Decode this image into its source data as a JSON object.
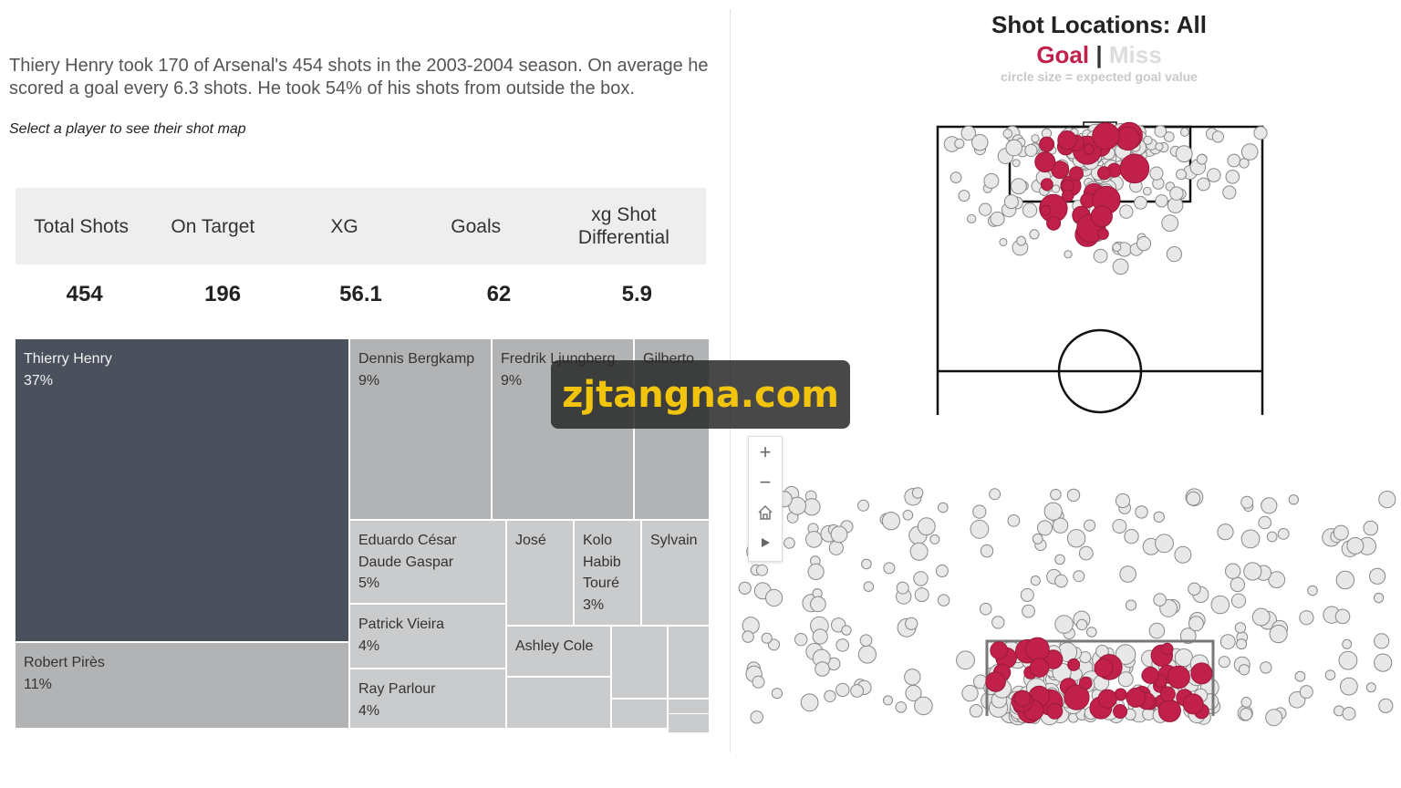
{
  "summary": "Thiery Henry took 170 of Arsenal's 454 shots in the 2003-2004 season. On average he scored a goal every 6.3 shots. He took 54% of his shots from outside the box.",
  "hint": "Select a player to see their shot map",
  "kpis": [
    {
      "label": "Total Shots",
      "value": "454"
    },
    {
      "label": "On Target",
      "value": "196"
    },
    {
      "label": "XG",
      "value": "56.1"
    },
    {
      "label": "Goals",
      "value": "62"
    },
    {
      "label": "xg Shot Differential",
      "value": "5.9"
    }
  ],
  "treemap": [
    {
      "name": "Thierry Henry",
      "pct": "37%"
    },
    {
      "name": "Robert Pirès",
      "pct": "11%"
    },
    {
      "name": "Dennis Bergkamp",
      "pct": "9%"
    },
    {
      "name": "Fredrik Ljungberg",
      "pct": "9%"
    },
    {
      "name": "Gilberto",
      "pct": ""
    },
    {
      "name": "Eduardo César Daude Gaspar",
      "pct": "5%"
    },
    {
      "name": "Patrick Vieira",
      "pct": "4%"
    },
    {
      "name": "Ray Parlour",
      "pct": "4%"
    },
    {
      "name": "José",
      "pct": ""
    },
    {
      "name": "Kolo Habib Touré",
      "pct": "3%"
    },
    {
      "name": "Sylvain",
      "pct": ""
    },
    {
      "name": "Ashley Cole",
      "pct": ""
    }
  ],
  "shotmap": {
    "title": "Shot Locations: All",
    "legend_goal": "Goal",
    "legend_sep": "|",
    "legend_miss": "Miss",
    "note": "circle size = expected goal value",
    "colors": {
      "goal": "#c1204a",
      "miss": "#e6e6e6"
    }
  },
  "zoom_controls": [
    "+",
    "−",
    "home-icon",
    "play-icon"
  ],
  "watermark": "zjtangna.com"
}
